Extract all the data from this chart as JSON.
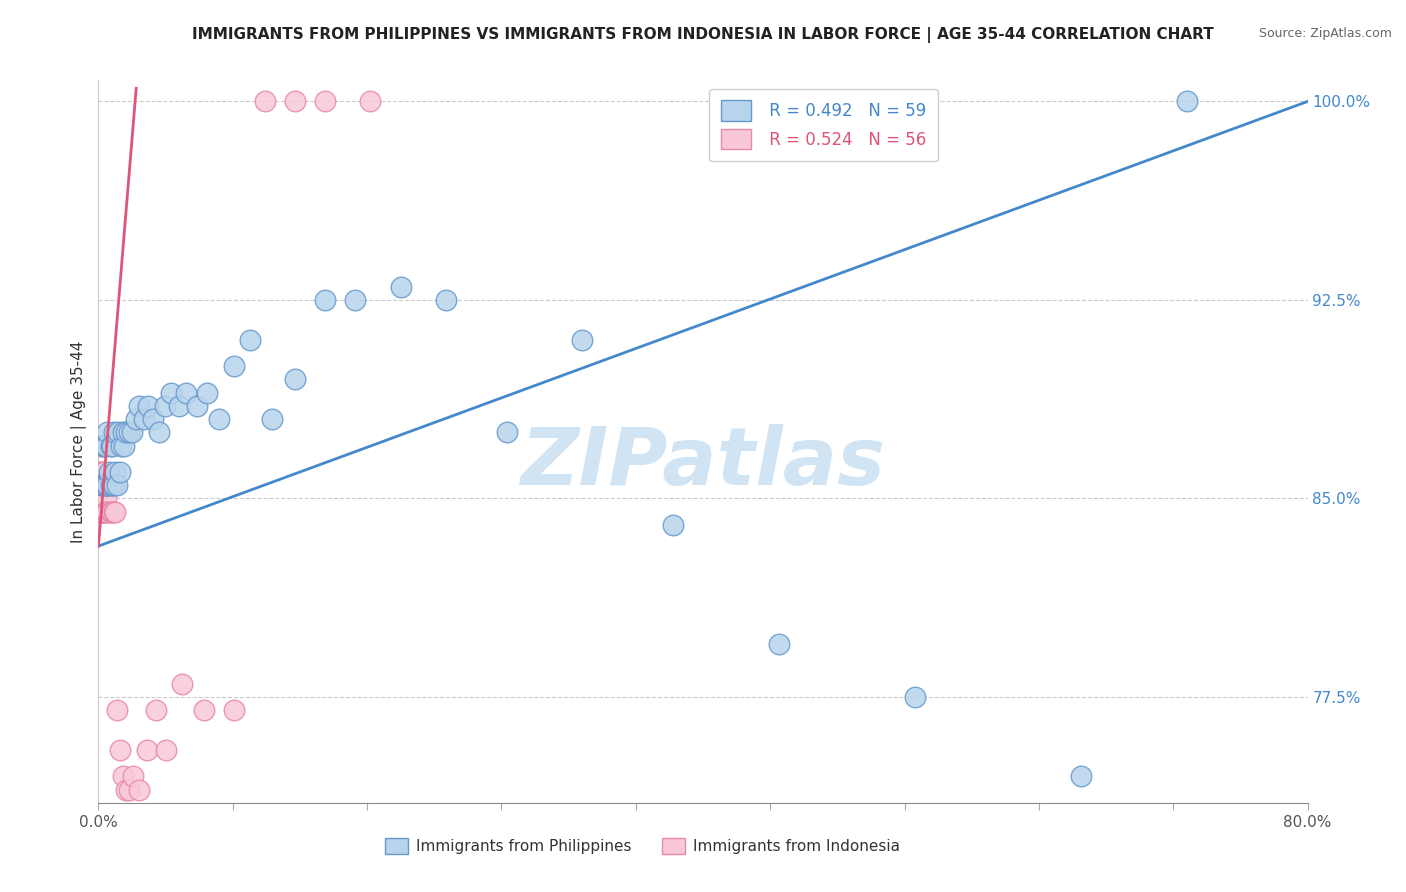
{
  "title": "IMMIGRANTS FROM PHILIPPINES VS IMMIGRANTS FROM INDONESIA IN LABOR FORCE | AGE 35-44 CORRELATION CHART",
  "source": "Source: ZipAtlas.com",
  "ylabel": "In Labor Force | Age 35-44",
  "x_min": 0.0,
  "x_max": 0.8,
  "y_min": 0.735,
  "y_max": 1.008,
  "y_tick_positions": [
    0.775,
    0.85,
    0.925,
    1.0
  ],
  "y_tick_labels": [
    "77.5%",
    "85.0%",
    "92.5%",
    "100.0%"
  ],
  "x_ticks": [
    0.0,
    0.08888,
    0.17777,
    0.26666,
    0.35555,
    0.44444,
    0.53333,
    0.62222,
    0.71111,
    0.8
  ],
  "x_tick_labels": [
    "0.0%",
    "",
    "",
    "",
    "",
    "",
    "",
    "",
    "",
    "80.0%"
  ],
  "series1_color": "#b8d4ec",
  "series1_edge": "#6699cc",
  "series2_color": "#f8c8d8",
  "series2_edge": "#e888aa",
  "line1_color": "#4488cc",
  "line2_color": "#dd5577",
  "watermark": "ZIPatlas",
  "watermark_color": "#d0e4f4",
  "legend_label1": "Immigrants from Philippines",
  "legend_label2": "Immigrants from Indonesia",
  "philippines_x": [
    0.002,
    0.003,
    0.003,
    0.004,
    0.004,
    0.005,
    0.005,
    0.006,
    0.006,
    0.007,
    0.008,
    0.008,
    0.009,
    0.009,
    0.01,
    0.01,
    0.011,
    0.012,
    0.013,
    0.014,
    0.015,
    0.016,
    0.017,
    0.018,
    0.02,
    0.022,
    0.025,
    0.027,
    0.03,
    0.033,
    0.036,
    0.04,
    0.044,
    0.048,
    0.053,
    0.058,
    0.065,
    0.072,
    0.08,
    0.09,
    0.1,
    0.115,
    0.13,
    0.15,
    0.17,
    0.2,
    0.23,
    0.27,
    0.32,
    0.38,
    0.45,
    0.54,
    0.65,
    0.72
  ],
  "philippines_y": [
    0.855,
    0.855,
    0.87,
    0.855,
    0.87,
    0.855,
    0.87,
    0.855,
    0.875,
    0.86,
    0.855,
    0.87,
    0.855,
    0.87,
    0.855,
    0.875,
    0.86,
    0.855,
    0.875,
    0.86,
    0.87,
    0.875,
    0.87,
    0.875,
    0.875,
    0.875,
    0.88,
    0.885,
    0.88,
    0.885,
    0.88,
    0.875,
    0.885,
    0.89,
    0.885,
    0.89,
    0.885,
    0.89,
    0.88,
    0.9,
    0.91,
    0.88,
    0.895,
    0.925,
    0.925,
    0.93,
    0.925,
    0.875,
    0.91,
    0.84,
    0.795,
    0.775,
    0.745,
    1.0
  ],
  "indonesia_x": [
    0.001,
    0.001,
    0.001,
    0.001,
    0.002,
    0.002,
    0.002,
    0.002,
    0.002,
    0.003,
    0.003,
    0.003,
    0.003,
    0.003,
    0.003,
    0.004,
    0.004,
    0.004,
    0.004,
    0.004,
    0.005,
    0.005,
    0.005,
    0.005,
    0.006,
    0.006,
    0.007,
    0.007,
    0.008,
    0.008,
    0.009,
    0.01,
    0.011,
    0.012,
    0.014,
    0.016,
    0.018,
    0.02,
    0.023,
    0.027,
    0.032,
    0.038,
    0.045,
    0.055,
    0.07,
    0.09,
    0.11,
    0.13,
    0.15,
    0.18
  ],
  "indonesia_y": [
    0.845,
    0.86,
    0.87,
    0.855,
    0.845,
    0.855,
    0.855,
    0.86,
    0.845,
    0.845,
    0.855,
    0.855,
    0.845,
    0.855,
    0.86,
    0.845,
    0.86,
    0.855,
    0.845,
    0.855,
    0.85,
    0.855,
    0.855,
    0.845,
    0.855,
    0.845,
    0.855,
    0.855,
    0.845,
    0.845,
    0.845,
    0.845,
    0.845,
    0.77,
    0.755,
    0.745,
    0.74,
    0.74,
    0.745,
    0.74,
    0.755,
    0.77,
    0.755,
    0.78,
    0.77,
    0.77,
    1.0,
    1.0,
    1.0,
    1.0
  ],
  "blue_line_x0": 0.0,
  "blue_line_y0": 0.832,
  "blue_line_x1": 0.8,
  "blue_line_y1": 1.0,
  "pink_line_x0": 0.0,
  "pink_line_y0": 0.832,
  "pink_line_x1": 0.025,
  "pink_line_y1": 1.005
}
